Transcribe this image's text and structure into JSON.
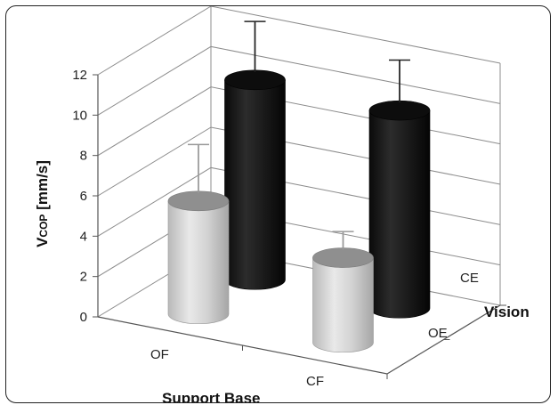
{
  "chart_data": {
    "type": "bar",
    "variant": "3d-cylinder",
    "title": "",
    "ylabel": {
      "main": "V",
      "sub": "COP",
      "rest": " [mm/s]"
    },
    "xlabel": "Support Base",
    "zlabel": "Vision",
    "ylim": [
      0,
      12
    ],
    "yticks": [
      "0",
      "2",
      "4",
      "6",
      "8",
      "10",
      "12"
    ],
    "x_categories": [
      "OF",
      "CF"
    ],
    "z_categories": [
      "OE",
      "CE"
    ],
    "grid": true,
    "bars": [
      {
        "support": "OF",
        "vision": "OE",
        "value": 5.6,
        "error": 2.8,
        "color": "#cfcfcf"
      },
      {
        "support": "OF",
        "vision": "CE",
        "value": 9.9,
        "error": 2.9,
        "color": "#1c1c1c"
      },
      {
        "support": "CF",
        "vision": "OE",
        "value": 4.2,
        "error": 1.3,
        "color": "#cfcfcf"
      },
      {
        "support": "CF",
        "vision": "CE",
        "value": 9.8,
        "error": 2.5,
        "color": "#1c1c1c"
      }
    ]
  }
}
